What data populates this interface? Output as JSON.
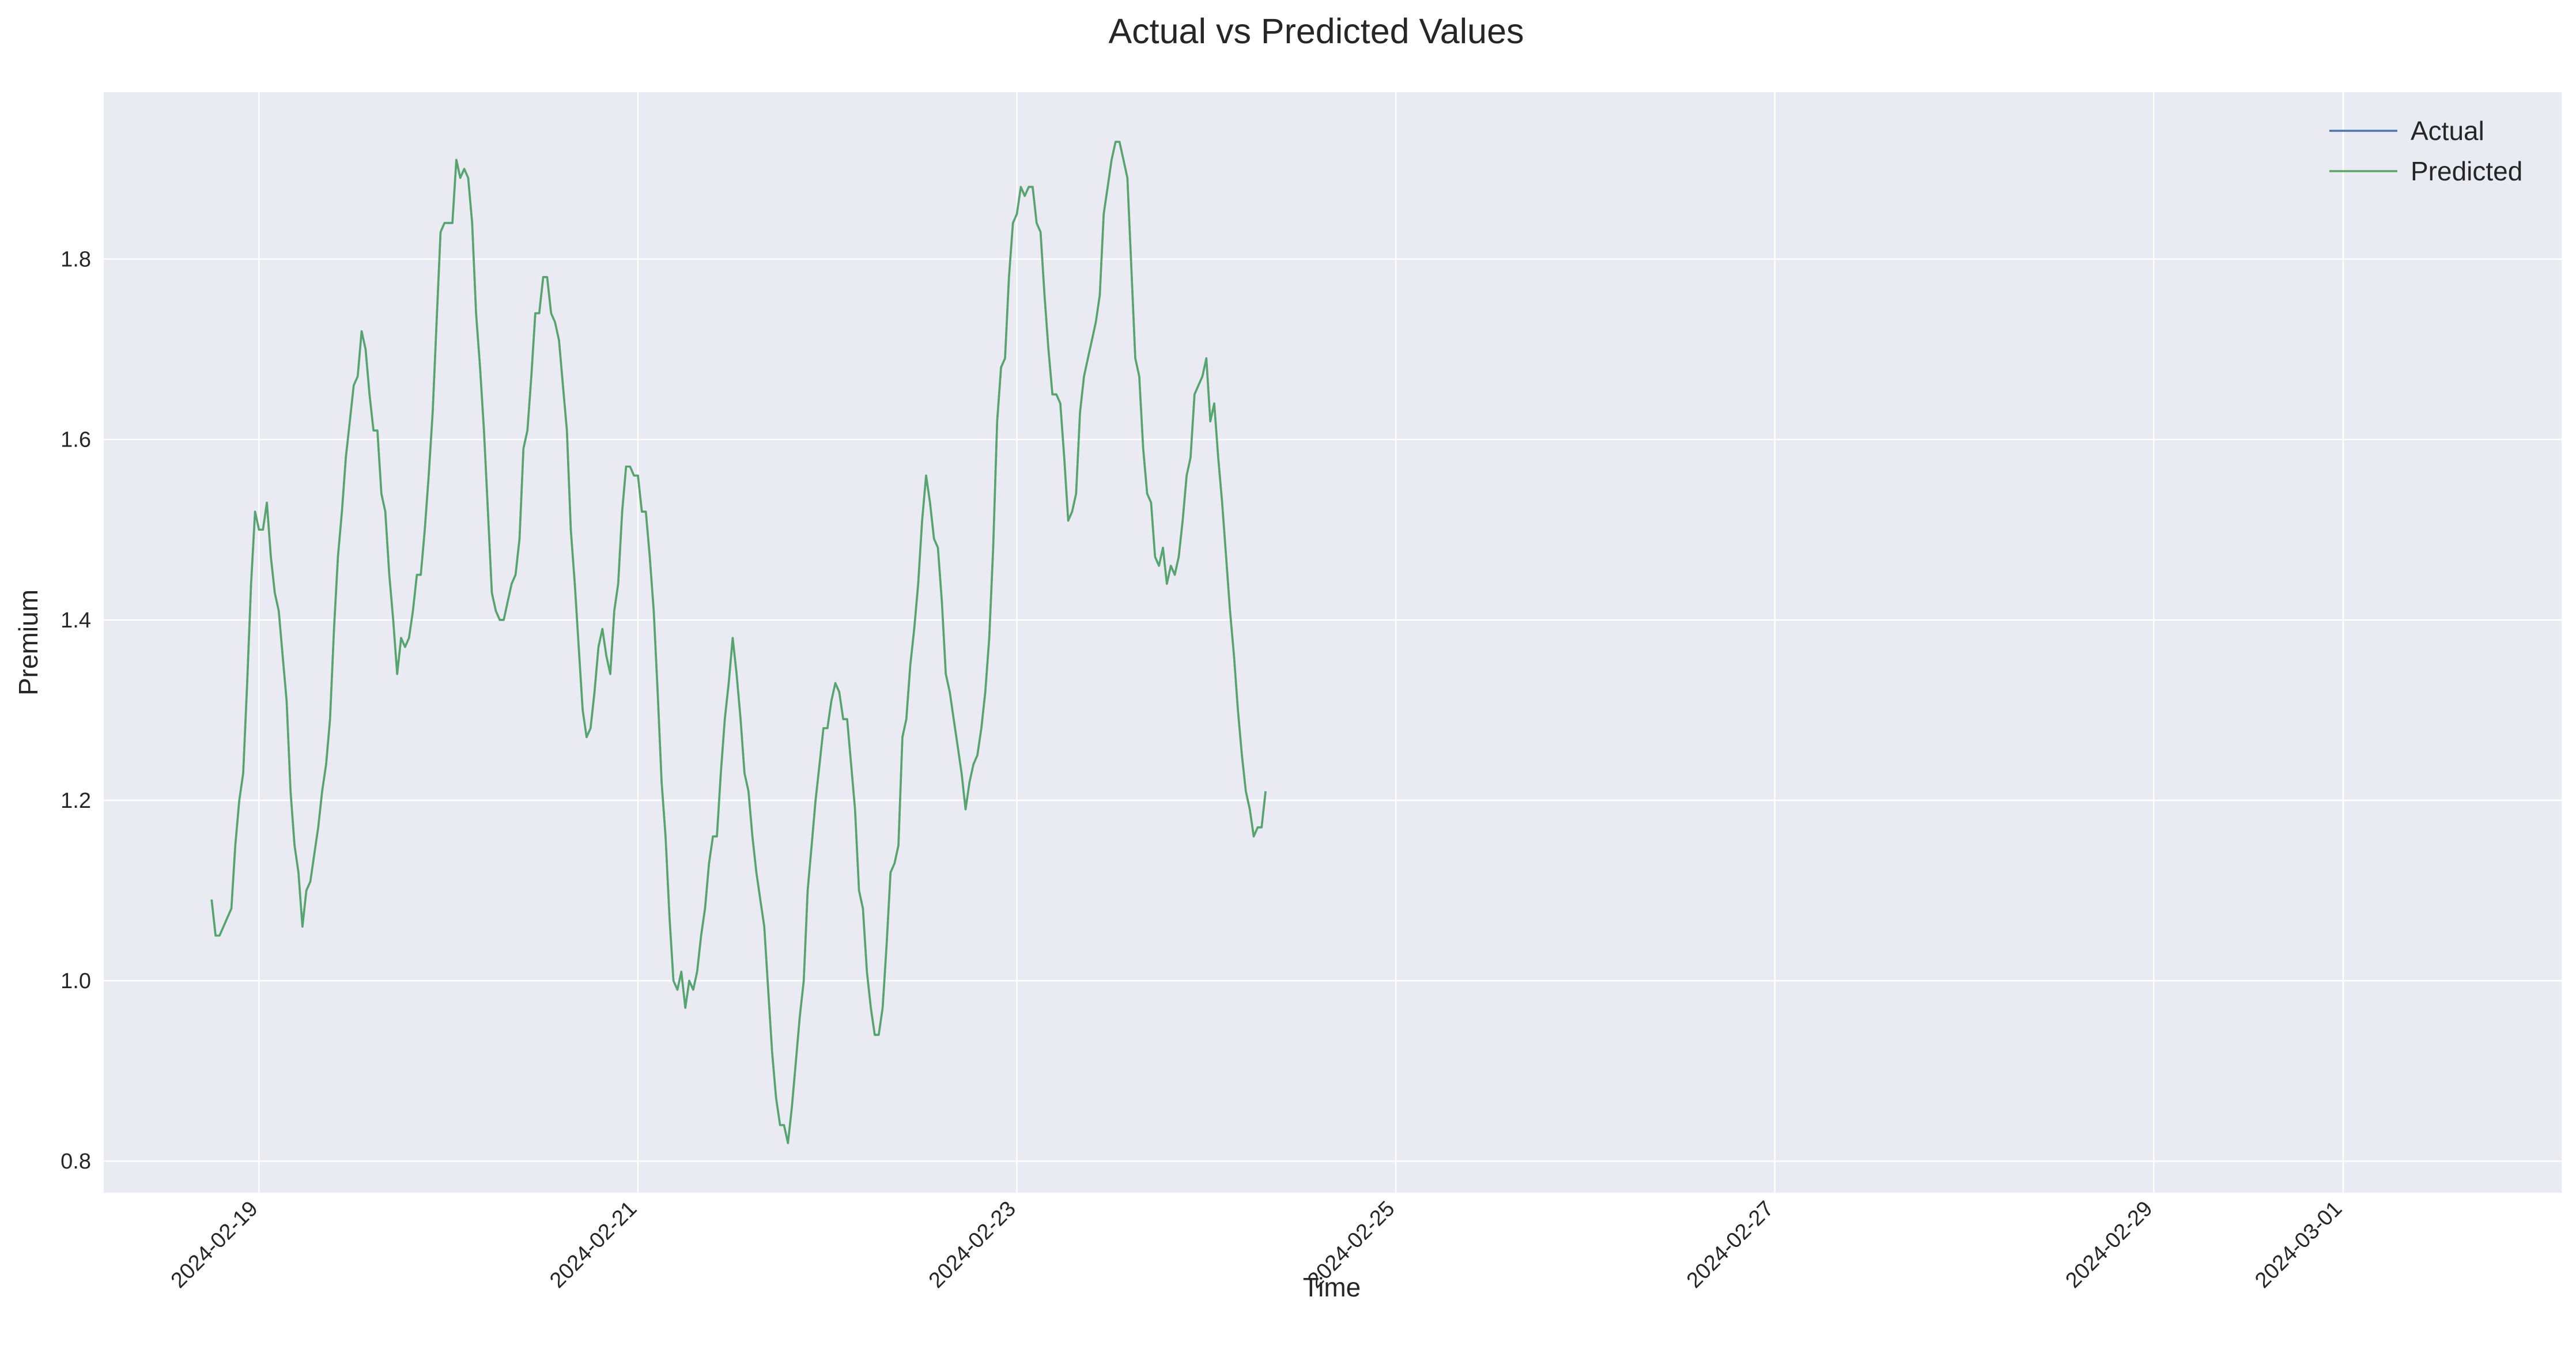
{
  "chart_data": {
    "type": "line",
    "title": "Actual vs Predicted Values",
    "xlabel": "Time",
    "ylabel": "Premium",
    "x_range": [
      "2024-02-18T04:20",
      "2024-03-02T03:40"
    ],
    "x_ticks": [
      "2024-02-19",
      "2024-02-21",
      "2024-02-23",
      "2024-02-25",
      "2024-02-27",
      "2024-02-29",
      "2024-03-01"
    ],
    "ylim": [
      0.765,
      1.985
    ],
    "y_ticks": [
      0.8,
      1.0,
      1.2,
      1.4,
      1.6,
      1.8
    ],
    "y_tick_labels": [
      "0.8",
      "1.0",
      "1.2",
      "1.4",
      "1.6",
      "1.8"
    ],
    "grid": true,
    "legend_position": "top-right",
    "x_start": "2024-02-18T18:00",
    "x_step_hours": 0.5,
    "series": [
      {
        "name": "Actual",
        "color": "#4c72b0",
        "values": [
          1.09,
          1.05,
          1.05,
          1.06,
          1.07,
          1.08,
          1.15,
          1.2,
          1.23,
          1.33,
          1.44,
          1.52,
          1.5,
          1.5,
          1.53,
          1.47,
          1.43,
          1.41,
          1.36,
          1.31,
          1.21,
          1.15,
          1.12,
          1.06,
          1.1,
          1.11,
          1.14,
          1.17,
          1.21,
          1.24,
          1.29,
          1.39,
          1.47,
          1.52,
          1.58,
          1.62,
          1.66,
          1.67,
          1.72,
          1.7,
          1.65,
          1.61,
          1.61,
          1.54,
          1.52,
          1.45,
          1.4,
          1.34,
          1.38,
          1.37,
          1.38,
          1.41,
          1.45,
          1.45,
          1.5,
          1.56,
          1.63,
          1.73,
          1.83,
          1.84,
          1.84,
          1.84,
          1.91,
          1.89,
          1.9,
          1.89,
          1.84,
          1.74,
          1.68,
          1.61,
          1.52,
          1.43,
          1.41,
          1.4,
          1.4,
          1.42,
          1.44,
          1.45,
          1.49,
          1.59,
          1.61,
          1.67,
          1.74,
          1.74,
          1.78,
          1.78,
          1.74,
          1.73,
          1.71,
          1.66,
          1.61,
          1.5,
          1.44,
          1.37,
          1.3,
          1.27,
          1.28,
          1.32,
          1.37,
          1.39,
          1.36,
          1.34,
          1.41,
          1.44,
          1.52,
          1.57,
          1.57,
          1.56,
          1.56,
          1.52,
          1.52,
          1.47,
          1.41,
          1.32,
          1.22,
          1.16,
          1.07,
          1.0,
          0.99,
          1.01,
          0.97,
          1.0,
          0.99,
          1.01,
          1.05,
          1.08,
          1.13,
          1.16,
          1.16,
          1.23,
          1.29,
          1.33,
          1.38,
          1.34,
          1.29,
          1.23,
          1.21,
          1.16,
          1.12,
          1.09,
          1.06,
          0.99,
          0.92,
          0.87,
          0.84,
          0.84,
          0.82,
          0.86,
          0.91,
          0.96,
          1.0,
          1.1,
          1.15,
          1.2,
          1.24,
          1.28,
          1.28,
          1.31,
          1.33,
          1.32,
          1.29,
          1.29,
          1.24,
          1.19,
          1.1,
          1.08,
          1.01,
          0.97,
          0.94,
          0.94,
          0.97,
          1.04,
          1.12,
          1.13,
          1.15,
          1.27,
          1.29,
          1.35,
          1.39,
          1.44,
          1.51,
          1.56,
          1.53,
          1.49,
          1.48,
          1.42,
          1.34,
          1.32,
          1.29,
          1.26,
          1.23,
          1.19,
          1.22,
          1.24,
          1.25,
          1.28,
          1.32,
          1.38,
          1.48,
          1.62,
          1.68,
          1.69,
          1.78,
          1.84,
          1.85,
          1.88,
          1.87,
          1.88,
          1.88,
          1.84,
          1.83,
          1.76,
          1.7,
          1.65,
          1.65,
          1.64,
          1.58,
          1.51,
          1.52,
          1.54,
          1.63,
          1.67,
          1.69,
          1.71,
          1.73,
          1.76,
          1.85,
          1.88,
          1.91,
          1.93,
          1.93,
          1.91,
          1.89,
          1.79,
          1.69,
          1.67,
          1.59,
          1.54,
          1.53,
          1.47,
          1.46,
          1.48,
          1.44,
          1.46,
          1.45,
          1.47,
          1.51,
          1.56,
          1.58,
          1.65,
          1.66,
          1.67,
          1.69,
          1.62,
          1.64,
          1.58,
          1.53,
          1.47,
          1.41,
          1.36,
          1.3,
          1.25,
          1.21,
          1.19,
          1.16,
          1.17,
          1.17,
          1.21
        ]
      },
      {
        "name": "Predicted",
        "color": "#55a868",
        "values": [
          1.09,
          1.05,
          1.05,
          1.06,
          1.07,
          1.08,
          1.15,
          1.2,
          1.23,
          1.33,
          1.44,
          1.52,
          1.5,
          1.5,
          1.53,
          1.47,
          1.43,
          1.41,
          1.36,
          1.31,
          1.21,
          1.15,
          1.12,
          1.06,
          1.1,
          1.11,
          1.14,
          1.17,
          1.21,
          1.24,
          1.29,
          1.39,
          1.47,
          1.52,
          1.58,
          1.62,
          1.66,
          1.67,
          1.72,
          1.7,
          1.65,
          1.61,
          1.61,
          1.54,
          1.52,
          1.45,
          1.4,
          1.34,
          1.38,
          1.37,
          1.38,
          1.41,
          1.45,
          1.45,
          1.5,
          1.56,
          1.63,
          1.73,
          1.83,
          1.84,
          1.84,
          1.84,
          1.91,
          1.89,
          1.9,
          1.89,
          1.84,
          1.74,
          1.68,
          1.61,
          1.52,
          1.43,
          1.41,
          1.4,
          1.4,
          1.42,
          1.44,
          1.45,
          1.49,
          1.59,
          1.61,
          1.67,
          1.74,
          1.74,
          1.78,
          1.78,
          1.74,
          1.73,
          1.71,
          1.66,
          1.61,
          1.5,
          1.44,
          1.37,
          1.3,
          1.27,
          1.28,
          1.32,
          1.37,
          1.39,
          1.36,
          1.34,
          1.41,
          1.44,
          1.52,
          1.57,
          1.57,
          1.56,
          1.56,
          1.52,
          1.52,
          1.47,
          1.41,
          1.32,
          1.22,
          1.16,
          1.07,
          1.0,
          0.99,
          1.01,
          0.97,
          1.0,
          0.99,
          1.01,
          1.05,
          1.08,
          1.13,
          1.16,
          1.16,
          1.23,
          1.29,
          1.33,
          1.38,
          1.34,
          1.29,
          1.23,
          1.21,
          1.16,
          1.12,
          1.09,
          1.06,
          0.99,
          0.92,
          0.87,
          0.84,
          0.84,
          0.82,
          0.86,
          0.91,
          0.96,
          1.0,
          1.1,
          1.15,
          1.2,
          1.24,
          1.28,
          1.28,
          1.31,
          1.33,
          1.32,
          1.29,
          1.29,
          1.24,
          1.19,
          1.1,
          1.08,
          1.01,
          0.97,
          0.94,
          0.94,
          0.97,
          1.04,
          1.12,
          1.13,
          1.15,
          1.27,
          1.29,
          1.35,
          1.39,
          1.44,
          1.51,
          1.56,
          1.53,
          1.49,
          1.48,
          1.42,
          1.34,
          1.32,
          1.29,
          1.26,
          1.23,
          1.19,
          1.22,
          1.24,
          1.25,
          1.28,
          1.32,
          1.38,
          1.48,
          1.62,
          1.68,
          1.69,
          1.78,
          1.84,
          1.85,
          1.88,
          1.87,
          1.88,
          1.88,
          1.84,
          1.83,
          1.76,
          1.7,
          1.65,
          1.65,
          1.64,
          1.58,
          1.51,
          1.52,
          1.54,
          1.63,
          1.67,
          1.69,
          1.71,
          1.73,
          1.76,
          1.85,
          1.88,
          1.91,
          1.93,
          1.93,
          1.91,
          1.89,
          1.79,
          1.69,
          1.67,
          1.59,
          1.54,
          1.53,
          1.47,
          1.46,
          1.48,
          1.44,
          1.46,
          1.45,
          1.47,
          1.51,
          1.56,
          1.58,
          1.65,
          1.66,
          1.67,
          1.69,
          1.62,
          1.64,
          1.58,
          1.53,
          1.47,
          1.41,
          1.36,
          1.3,
          1.25,
          1.21,
          1.19,
          1.16,
          1.17,
          1.17,
          1.21
        ]
      }
    ]
  }
}
